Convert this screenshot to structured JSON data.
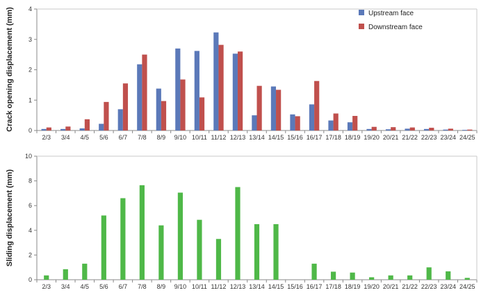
{
  "chart_data": [
    {
      "type": "bar",
      "categories": [
        "2/3",
        "3/4",
        "4/5",
        "5/6",
        "6/7",
        "7/8",
        "8/9",
        "9/10",
        "10/11",
        "11/12",
        "12/13",
        "13/14",
        "14/15",
        "15/16",
        "16/17",
        "17/18",
        "18/19",
        "19/20",
        "20/21",
        "21/22",
        "22/23",
        "23/24",
        "24/25"
      ],
      "series": [
        {
          "name": "Upstream face",
          "color": "#5b79b9",
          "values": [
            0.05,
            0.05,
            0.07,
            0.22,
            0.7,
            2.18,
            1.38,
            2.7,
            2.62,
            3.23,
            2.53,
            0.5,
            1.45,
            0.53,
            0.86,
            0.33,
            0.27,
            0.05,
            0.04,
            0.06,
            0.05,
            0.03,
            0.02
          ]
        },
        {
          "name": "Downstream face",
          "color": "#c0504d",
          "values": [
            0.1,
            0.13,
            0.37,
            0.94,
            1.55,
            2.5,
            0.97,
            1.68,
            1.09,
            2.82,
            2.6,
            1.47,
            1.34,
            0.47,
            1.63,
            0.56,
            0.48,
            0.12,
            0.11,
            0.1,
            0.09,
            0.06,
            0.03
          ]
        }
      ],
      "ylabel": "Crack opening displacement (mm)",
      "ylim": [
        0,
        4
      ],
      "yticks": [
        0,
        1,
        2,
        3,
        4
      ],
      "grid": false,
      "legend_position": "top-right"
    },
    {
      "type": "bar",
      "categories": [
        "2/3",
        "3/4",
        "4/5",
        "5/6",
        "6/7",
        "7/8",
        "8/9",
        "9/10",
        "10/11",
        "11/12",
        "12/13",
        "13/14",
        "14/15",
        "15/16",
        "16/17",
        "17/18",
        "18/19",
        "19/20",
        "20/21",
        "21/22",
        "22/23",
        "23/24",
        "24/25"
      ],
      "series": [
        {
          "color": "#4fb848",
          "values": [
            0.35,
            0.85,
            1.3,
            5.2,
            6.6,
            7.65,
            4.4,
            7.05,
            4.85,
            3.3,
            7.5,
            4.5,
            4.5,
            0,
            1.3,
            0.65,
            0.58,
            0.2,
            0.35,
            0.35,
            1.0,
            0.68,
            0.15
          ]
        }
      ],
      "ylabel": "Sliding displacement (mm)",
      "ylim": [
        0,
        10
      ],
      "yticks": [
        0,
        2,
        4,
        6,
        8,
        10
      ],
      "grid": false
    }
  ]
}
